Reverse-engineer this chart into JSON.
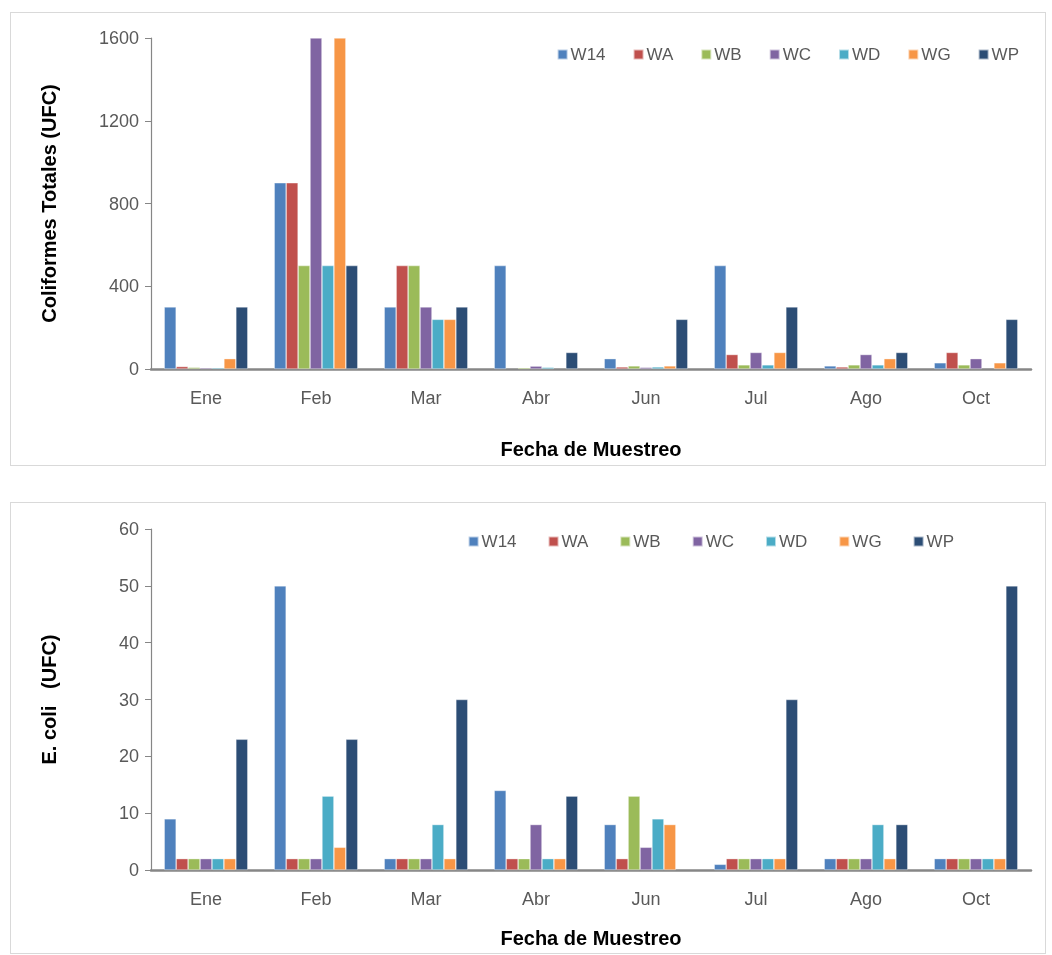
{
  "chart_data": [
    {
      "type": "bar",
      "xlabel": "Fecha de Muestreo",
      "ylabel": "Coliformes Totales (UFC)",
      "categories": [
        "Ene",
        "Feb",
        "Mar",
        "Abr",
        "Jun",
        "Jul",
        "Ago",
        "Oct"
      ],
      "series": [
        {
          "name": "W14",
          "color": "#4f81bd",
          "values": [
            300,
            900,
            300,
            500,
            50,
            500,
            15,
            30
          ]
        },
        {
          "name": "WA",
          "color": "#c0504d",
          "values": [
            12,
            900,
            500,
            null,
            10,
            70,
            10,
            80
          ]
        },
        {
          "name": "WB",
          "color": "#9bbb59",
          "values": [
            8,
            500,
            500,
            6,
            15,
            20,
            20,
            20
          ]
        },
        {
          "name": "WC",
          "color": "#8064a2",
          "values": [
            6,
            1600,
            300,
            14,
            8,
            80,
            70,
            50
          ]
        },
        {
          "name": "WD",
          "color": "#4bacc6",
          "values": [
            6,
            500,
            240,
            8,
            10,
            20,
            20,
            null
          ]
        },
        {
          "name": "WG",
          "color": "#f79646",
          "values": [
            50,
            1600,
            240,
            null,
            15,
            80,
            50,
            30
          ]
        },
        {
          "name": "WP",
          "color": "#2c4d75",
          "values": [
            300,
            500,
            300,
            80,
            240,
            300,
            80,
            240
          ]
        }
      ],
      "ylim": [
        0,
        1600
      ],
      "yticks": [
        0,
        400,
        800,
        1200,
        1600
      ],
      "grid": false,
      "legend": "top right"
    },
    {
      "type": "bar",
      "xlabel": "Fecha de Muestreo",
      "ylabel": "E. coli   (UFC)",
      "categories": [
        "Ene",
        "Feb",
        "Mar",
        "Abr",
        "Jun",
        "Jul",
        "Ago",
        "Oct"
      ],
      "series": [
        {
          "name": "W14",
          "color": "#4f81bd",
          "values": [
            9,
            50,
            2,
            14,
            8,
            1,
            2,
            2
          ]
        },
        {
          "name": "WA",
          "color": "#c0504d",
          "values": [
            2,
            2,
            2,
            2,
            2,
            2,
            2,
            2
          ]
        },
        {
          "name": "WB",
          "color": "#9bbb59",
          "values": [
            2,
            2,
            2,
            2,
            13,
            2,
            2,
            2
          ]
        },
        {
          "name": "WC",
          "color": "#8064a2",
          "values": [
            2,
            2,
            2,
            8,
            4,
            2,
            2,
            2
          ]
        },
        {
          "name": "WD",
          "color": "#4bacc6",
          "values": [
            2,
            13,
            8,
            2,
            9,
            2,
            8,
            2
          ]
        },
        {
          "name": "WG",
          "color": "#f79646",
          "values": [
            2,
            4,
            2,
            2,
            8,
            2,
            2,
            2
          ]
        },
        {
          "name": "WP",
          "color": "#2c4d75",
          "values": [
            23,
            23,
            30,
            13,
            null,
            30,
            8,
            50
          ]
        }
      ],
      "ylim": [
        0,
        60
      ],
      "yticks": [
        0,
        10,
        20,
        30,
        40,
        50,
        60
      ],
      "grid": false,
      "legend": "top right"
    }
  ]
}
